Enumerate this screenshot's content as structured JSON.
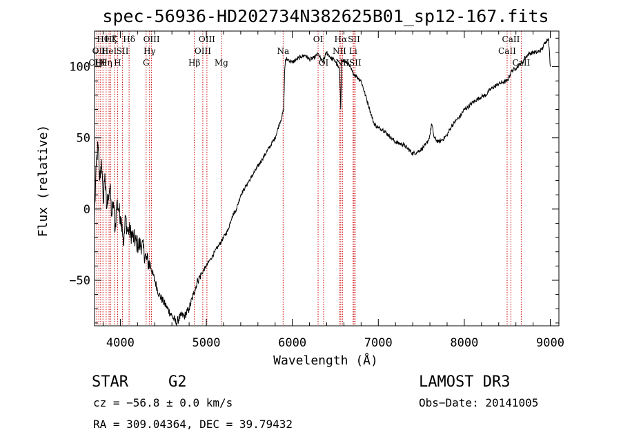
{
  "chart_data": {
    "type": "line",
    "title": "spec-56936-HD202734N382625B01_sp12-167.fits",
    "xlabel": "Wavelength (Å)",
    "ylabel": "Flux (relative)",
    "xlim": [
      3700,
      9100
    ],
    "ylim": [
      -82,
      125
    ],
    "xticks": [
      4000,
      5000,
      6000,
      7000,
      8000,
      9000
    ],
    "yticks": [
      -50,
      0,
      50,
      100
    ],
    "xtick_labels": [
      "4000",
      "5000",
      "6000",
      "7000",
      "8000",
      "9000"
    ],
    "ytick_labels": [
      "−50",
      "0",
      "50",
      "100"
    ],
    "series": [
      {
        "x": [
          3700,
          3720,
          3740,
          3760,
          3780,
          3800,
          3820,
          3840,
          3860,
          3880,
          3900,
          3920,
          3940,
          3960,
          3980,
          4000,
          4020,
          4040,
          4060,
          4080,
          4100,
          4150,
          4200,
          4250,
          4300,
          4350,
          4400,
          4450,
          4500,
          4550,
          4600,
          4650,
          4700,
          4750,
          4800,
          4850,
          4900,
          4950,
          5000,
          5050,
          5100,
          5150,
          5200,
          5250,
          5300,
          5350,
          5400,
          5450,
          5500,
          5550,
          5600,
          5650,
          5700,
          5750,
          5800,
          5850,
          5880,
          5900,
          5910,
          5920,
          5950,
          6000,
          6050,
          6100,
          6150,
          6200,
          6250,
          6300,
          6350,
          6400,
          6450,
          6500,
          6530,
          6550,
          6563,
          6575,
          6600,
          6650,
          6700,
          6750,
          6800,
          6850,
          6900,
          6950,
          7000,
          7050,
          7100,
          7150,
          7200,
          7250,
          7300,
          7350,
          7400,
          7450,
          7500,
          7550,
          7580,
          7600,
          7620,
          7650,
          7700,
          7750,
          7800,
          7850,
          7900,
          7950,
          8000,
          8050,
          8100,
          8150,
          8200,
          8250,
          8300,
          8350,
          8400,
          8450,
          8500,
          8550,
          8600,
          8650,
          8680,
          8700,
          8750,
          8800,
          8850,
          8900,
          8950,
          8980,
          9000
        ],
        "y": [
          -5,
          30,
          45,
          20,
          35,
          5,
          25,
          0,
          10,
          15,
          -5,
          5,
          -15,
          5,
          0,
          -5,
          -10,
          -25,
          -5,
          -15,
          -15,
          -20,
          -25,
          -25,
          -35,
          -40,
          -50,
          -60,
          -65,
          -70,
          -75,
          -80,
          -75,
          -75,
          -70,
          -60,
          -50,
          -45,
          -40,
          -35,
          -30,
          -25,
          -20,
          -15,
          -5,
          0,
          10,
          15,
          20,
          25,
          30,
          35,
          40,
          45,
          50,
          60,
          65,
          70,
          95,
          105,
          105,
          103,
          105,
          107,
          108,
          105,
          106,
          109,
          103,
          110,
          106,
          104,
          100,
          98,
          70,
          105,
          104,
          102,
          96,
          93,
          90,
          80,
          70,
          60,
          57,
          56,
          53,
          50,
          47,
          46,
          45,
          42,
          39,
          40,
          42,
          45,
          48,
          52,
          60,
          50,
          47,
          49,
          52,
          58,
          62,
          65,
          70,
          72,
          75,
          77,
          79,
          80,
          84,
          86,
          88,
          89,
          90,
          97,
          99,
          102,
          103,
          106,
          109,
          110,
          110,
          112,
          118,
          120,
          100
        ]
      }
    ],
    "line_markers": [
      {
        "x": 3727,
        "row": 2,
        "label": "OIII"
      },
      {
        "x": 3750,
        "row": 1,
        "label": "OII"
      },
      {
        "x": 3771,
        "row": 2,
        "label": "Hθ"
      },
      {
        "x": 3798,
        "row": 0,
        "label": "Hθ"
      },
      {
        "x": 3835,
        "row": 2,
        "label": "Hη"
      },
      {
        "x": 3869,
        "row": 1,
        "label": "HeI"
      },
      {
        "x": 3889,
        "row": 0,
        "label": "Hζ"
      },
      {
        "x": 3934,
        "row": 0,
        "label": "K"
      },
      {
        "x": 3968,
        "row": 2,
        "label": "H"
      },
      {
        "x": 4026,
        "row": 1,
        "label": "SII"
      },
      {
        "x": 4102,
        "row": 0,
        "label": "Hδ"
      },
      {
        "x": 4300,
        "row": 2,
        "label": "G"
      },
      {
        "x": 4340,
        "row": 1,
        "label": "Hγ"
      },
      {
        "x": 4363,
        "row": 0,
        "label": "OIII"
      },
      {
        "x": 4861,
        "row": 2,
        "label": "Hβ"
      },
      {
        "x": 4959,
        "row": 1,
        "label": "OIII"
      },
      {
        "x": 5007,
        "row": 0,
        "label": "OIII"
      },
      {
        "x": 5175,
        "row": 2,
        "label": "Mg"
      },
      {
        "x": 5893,
        "row": 1,
        "label": "Na"
      },
      {
        "x": 6300,
        "row": 0,
        "label": "OI"
      },
      {
        "x": 6364,
        "row": 2,
        "label": "OI"
      },
      {
        "x": 6548,
        "row": 1,
        "label": "NII"
      },
      {
        "x": 6563,
        "row": 0,
        "label": "Hα"
      },
      {
        "x": 6583,
        "row": 2,
        "label": "NII"
      },
      {
        "x": 6707,
        "row": 1,
        "label": "Li"
      },
      {
        "x": 6717,
        "row": 0,
        "label": "SII"
      },
      {
        "x": 6731,
        "row": 2,
        "label": "SII"
      },
      {
        "x": 8498,
        "row": 1,
        "label": "CaII"
      },
      {
        "x": 8542,
        "row": 0,
        "label": "CaII"
      },
      {
        "x": 8662,
        "row": 2,
        "label": "CaII"
      }
    ]
  },
  "info": {
    "class": "STAR",
    "subclass": "G2",
    "survey": "LAMOST DR3",
    "cz": "cz = −56.8 ± 0.0 km/s",
    "obs_date": "Obs−Date: 20141005",
    "coords": "RA = 309.04364, DEC =  39.79432"
  }
}
